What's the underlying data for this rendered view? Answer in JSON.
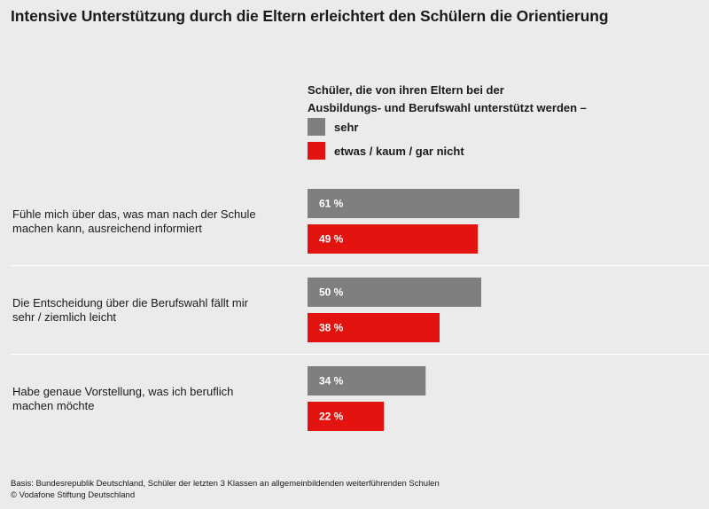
{
  "chart_data": {
    "type": "bar",
    "orientation": "horizontal",
    "title": "Intensive Unterstützung durch die Eltern erleichtert den Schülern die Orientierung",
    "legend_title": "Schüler, die von ihren Eltern bei der Ausbildungs- und Berufswahl unterstützt werden –",
    "categories": [
      "Fühle mich über das, was man nach der Schule machen kann, ausreichend informiert",
      "Die Entscheidung über die Berufswahl fällt mir sehr / ziemlich leicht",
      "Habe genaue Vorstellung, was ich beruflich machen möchte"
    ],
    "series": [
      {
        "name": "sehr",
        "color": "#7f7f7f",
        "values": [
          61,
          50,
          34
        ],
        "labels": [
          "61 %",
          "50 %",
          "34 %"
        ]
      },
      {
        "name": "etwas / kaum / gar nicht",
        "color": "#e3130f",
        "values": [
          49,
          38,
          22
        ],
        "labels": [
          "49 %",
          "38 %",
          "22 %"
        ]
      }
    ],
    "unit": "%",
    "xlim": [
      0,
      100
    ],
    "grid": false,
    "legend_position": "top-right"
  },
  "category_lines": [
    [
      "Fühle mich über das, was man nach der Schule",
      "machen kann, ausreichend informiert"
    ],
    [
      "Die Entscheidung über die Berufswahl fällt mir",
      "sehr / ziemlich leicht"
    ],
    [
      "Habe genaue Vorstellung, was ich beruflich",
      "machen möchte"
    ]
  ],
  "legend_lines": [
    "Schüler, die von ihren Eltern bei der",
    "Ausbildungs- und Berufswahl unterstützt werden –"
  ],
  "footnote": {
    "basis": "Basis: Bundesrepublik Deutschland, Schüler der letzten 3 Klassen an allgemeinbildenden weiterführenden Schulen",
    "copyright": "© Vodafone Stiftung Deutschland"
  }
}
